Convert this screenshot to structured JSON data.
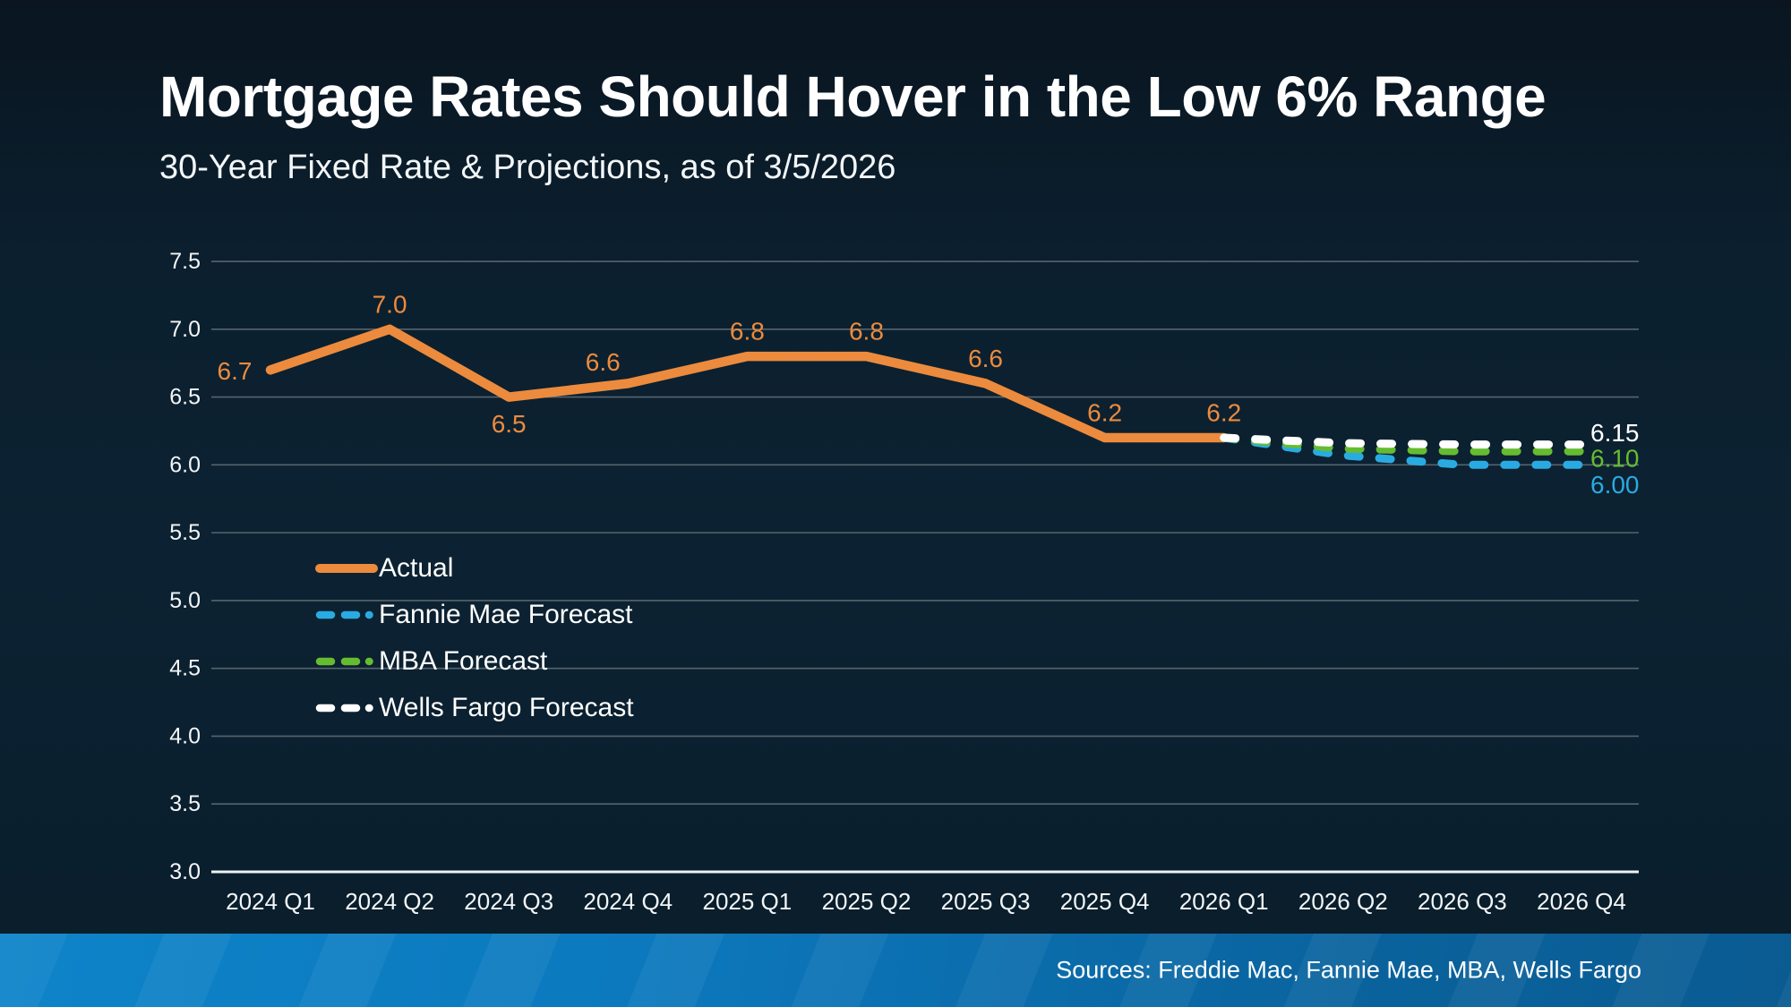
{
  "header": {
    "title": "Mortgage Rates Should Hover in the Low 6% Range",
    "subtitle": "30-Year Fixed Rate & Projections, as of 3/5/2026"
  },
  "footer": {
    "sources": "Sources: Freddie Mac, Fannie Mae, MBA, Wells Fargo"
  },
  "colors": {
    "background": "#0b2130",
    "grid_line": "#56646e",
    "axis_line": "#ecf2f5",
    "tick_text": "#f3f6f8",
    "footer_band_left": "#0e84c9",
    "footer_band_right": "#0a5b92"
  },
  "chart_data": {
    "type": "line",
    "title": "30-Year Fixed Rate & Projections, as of 3/5/2026",
    "xlabel": "",
    "ylabel": "",
    "ylim": [
      3.0,
      7.5
    ],
    "grid": true,
    "legend_position": "left-middle",
    "categories": [
      "2024 Q1",
      "2024 Q2",
      "2024 Q3",
      "2024 Q4",
      "2025 Q1",
      "2025 Q2",
      "2025 Q3",
      "2025 Q4",
      "2026 Q1",
      "2026 Q2",
      "2026 Q3",
      "2026 Q4"
    ],
    "yticks": [
      "7.5",
      "7.0",
      "6.5",
      "6.0",
      "5.5",
      "5.0",
      "4.5",
      "4.0",
      "3.5",
      "3.0"
    ],
    "series": [
      {
        "name": "Actual",
        "id": "actual",
        "color": "#ec8b3d",
        "style": "solid",
        "values": [
          6.7,
          7.0,
          6.5,
          6.6,
          6.8,
          6.8,
          6.6,
          6.2,
          6.2,
          null,
          null,
          null
        ],
        "point_labels": [
          "6.7",
          "7.0",
          "6.5",
          "6.6",
          "6.8",
          "6.8",
          "6.6",
          "6.2",
          "6.2",
          "",
          "",
          ""
        ],
        "label_pos": [
          "left",
          "above",
          "below",
          "above-left",
          "above",
          "above",
          "above",
          "above",
          "above",
          "",
          "",
          ""
        ]
      },
      {
        "name": "Fannie Mae Forecast",
        "id": "fannie-mae-forecast",
        "color": "#29abe2",
        "style": "dashed",
        "values": [
          null,
          null,
          null,
          null,
          null,
          null,
          null,
          null,
          6.2,
          6.07,
          6.0,
          6.0
        ],
        "end_label": "6.00",
        "end_label_dy": 22
      },
      {
        "name": "MBA Forecast",
        "id": "mba-forecast",
        "color": "#66bc31",
        "style": "dashed",
        "values": [
          null,
          null,
          null,
          null,
          null,
          null,
          null,
          null,
          6.2,
          6.12,
          6.1,
          6.1
        ],
        "end_label": "6.10",
        "end_label_dy": 8
      },
      {
        "name": "Wells Fargo Forecast",
        "id": "wells-fargo-forecast",
        "color": "#ffffff",
        "style": "dashed",
        "values": [
          null,
          null,
          null,
          null,
          null,
          null,
          null,
          null,
          6.2,
          6.16,
          6.15,
          6.15
        ],
        "end_label": "6.15",
        "end_label_dy": -13
      }
    ],
    "legend_order": [
      "Actual",
      "Fannie Mae Forecast",
      "MBA Forecast",
      "Wells Fargo Forecast"
    ]
  }
}
